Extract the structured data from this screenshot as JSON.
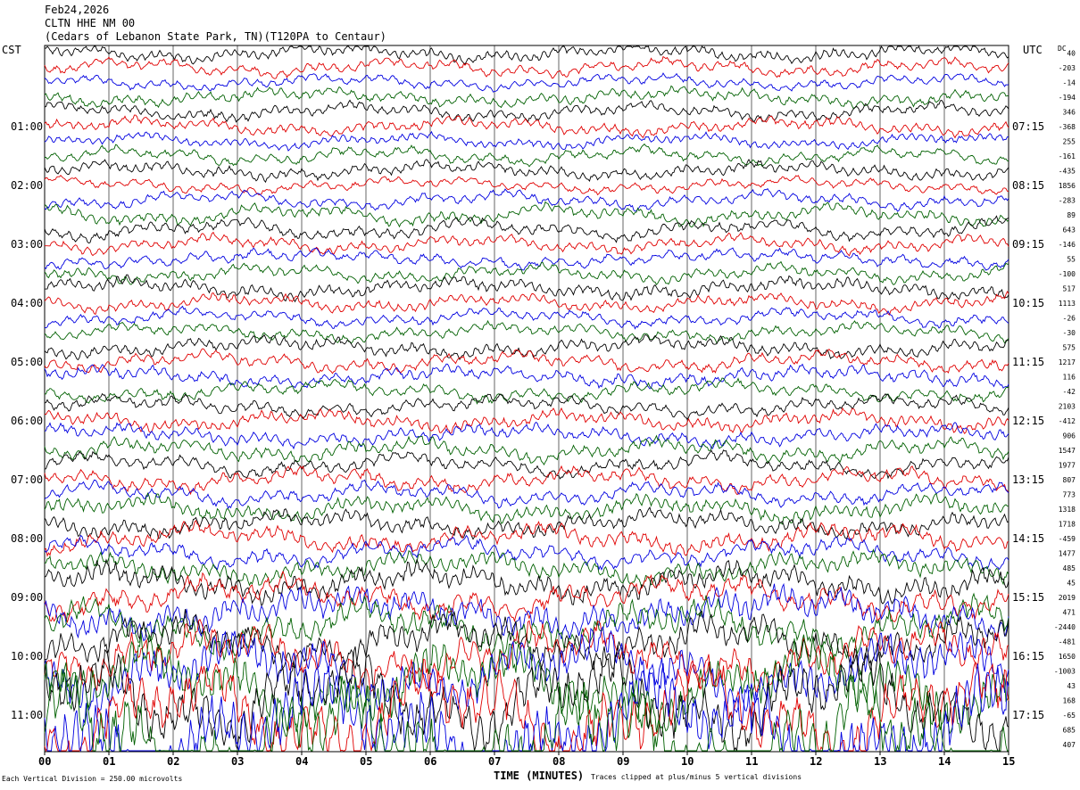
{
  "header": {
    "date": "Feb24,2026",
    "station": "CLTN HHE NM 00",
    "location": "(Cedars of Lebanon State Park, TN)(T120PA to Centaur)"
  },
  "axes": {
    "left_title": "CST",
    "right_title": "UTC",
    "dc_title": "DC",
    "x_title": "TIME (MINUTES)"
  },
  "footer": {
    "scale_note": "Each Vertical Division =  250.00 microvolts",
    "clip_note": "Traces clipped at plus/minus 5 vertical divisions"
  },
  "colors": {
    "trace_cycle": [
      "#000000",
      "#e00000",
      "#0000e0",
      "#006000"
    ],
    "grid": "#000000",
    "background": "#ffffff"
  },
  "chart_data": {
    "type": "line",
    "description_of_type": "helicorder",
    "x_ticks": [
      "00",
      "01",
      "02",
      "03",
      "04",
      "05",
      "06",
      "07",
      "08",
      "09",
      "10",
      "11",
      "12",
      "13",
      "14",
      "15"
    ],
    "xlim": [
      0,
      15
    ],
    "trace_count": 48,
    "minutes_per_trace": 15,
    "cst_labels": [
      {
        "row": 5,
        "label": "01:00"
      },
      {
        "row": 9,
        "label": "02:00"
      },
      {
        "row": 13,
        "label": "03:00"
      },
      {
        "row": 17,
        "label": "04:00"
      },
      {
        "row": 21,
        "label": "05:00"
      },
      {
        "row": 25,
        "label": "06:00"
      },
      {
        "row": 29,
        "label": "07:00"
      },
      {
        "row": 33,
        "label": "08:00"
      },
      {
        "row": 37,
        "label": "09:00"
      },
      {
        "row": 41,
        "label": "10:00"
      },
      {
        "row": 45,
        "label": "11:00"
      }
    ],
    "utc_labels": [
      {
        "row": 5,
        "label": "07:15"
      },
      {
        "row": 9,
        "label": "08:15"
      },
      {
        "row": 13,
        "label": "09:15"
      },
      {
        "row": 17,
        "label": "10:15"
      },
      {
        "row": 21,
        "label": "11:15"
      },
      {
        "row": 25,
        "label": "12:15"
      },
      {
        "row": 29,
        "label": "13:15"
      },
      {
        "row": 33,
        "label": "14:15"
      },
      {
        "row": 37,
        "label": "15:15"
      },
      {
        "row": 41,
        "label": "16:15"
      },
      {
        "row": 45,
        "label": "17:15"
      }
    ],
    "dc_offsets": [
      "40",
      "-203",
      "-14",
      "-194",
      "346",
      "-368",
      "255",
      "-161",
      "-435",
      "1856",
      "-283",
      "89",
      "643",
      "-146",
      "55",
      "-100",
      "517",
      "1113",
      "-26",
      "-30",
      "575",
      "1217",
      "116",
      "-42",
      "2103",
      "-412",
      "906",
      "1547",
      "1977",
      "807",
      "773",
      "1318",
      "1718",
      "-459",
      "1477",
      "485",
      "45",
      "2019",
      "471",
      "-2440",
      "-481",
      "1650",
      "-1003",
      "43",
      "168",
      "-65",
      "685",
      "407"
    ],
    "amplitude_per_row": [
      0.35,
      0.35,
      0.3,
      0.35,
      0.35,
      0.35,
      0.3,
      0.35,
      0.35,
      0.3,
      0.35,
      0.4,
      0.4,
      0.35,
      0.35,
      0.35,
      0.4,
      0.35,
      0.35,
      0.35,
      0.4,
      0.4,
      0.4,
      0.4,
      0.4,
      0.4,
      0.4,
      0.45,
      0.45,
      0.45,
      0.45,
      0.5,
      0.5,
      0.55,
      0.55,
      0.6,
      0.7,
      0.8,
      0.9,
      1.0,
      1.0,
      1.2,
      1.4,
      1.6,
      1.8,
      2.0,
      2.2,
      2.4
    ]
  }
}
